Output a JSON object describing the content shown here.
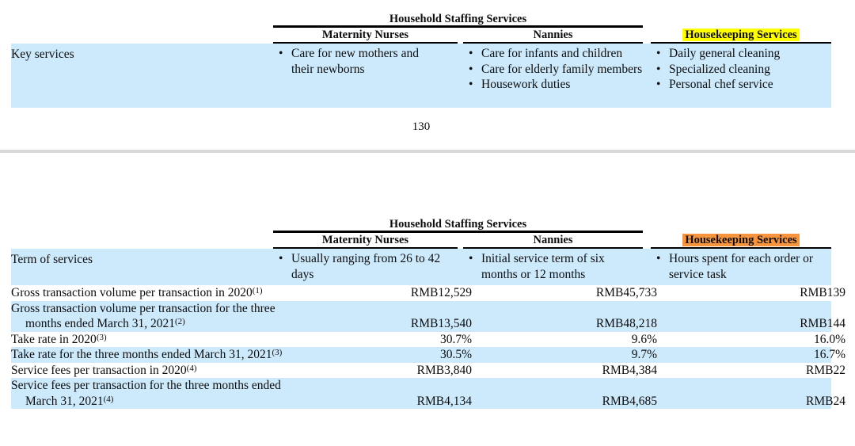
{
  "page": {
    "page_number": "130"
  },
  "colors": {
    "row_blue": "#cdeafc",
    "highlight_yellow": "#ffff00",
    "highlight_orange": "#f7943e",
    "divider_gray": "#d9d9d9"
  },
  "table_top": {
    "group_header": "Household Staffing Services",
    "columns": [
      "Maternity Nurses",
      "Nannies",
      "Housekeeping Services"
    ],
    "key_services": {
      "label": "Key services",
      "maternity": [
        "Care for new mothers and their newborns"
      ],
      "nannies": [
        "Care for infants and children",
        "Care for elderly family members",
        "Housework duties"
      ],
      "housekeeping": [
        "Daily general cleaning",
        "Specialized cleaning",
        "Personal chef service"
      ]
    }
  },
  "table_bottom": {
    "group_header": "Household Staffing Services",
    "columns": [
      "Maternity Nurses",
      "Nannies",
      "Housekeeping Services"
    ],
    "term_of_services": {
      "label": "Term of services",
      "maternity": [
        "Usually ranging from 26 to 42 days"
      ],
      "nannies": [
        "Initial service term of six months or 12 months"
      ],
      "housekeeping": [
        "Hours spent for each order or service task"
      ]
    },
    "rows": [
      {
        "label": "Gross transaction volume per transaction in 2020",
        "footnote": "(1)",
        "values": [
          "RMB12,529",
          "RMB45,733",
          "RMB139"
        ]
      },
      {
        "label": "Gross transaction volume per transaction for the three months ended March 31, 2021",
        "footnote": "(2)",
        "values": [
          "RMB13,540",
          "RMB48,218",
          "RMB144"
        ]
      },
      {
        "label": "Take rate in 2020",
        "footnote": "(3)",
        "values": [
          "30.7%",
          "9.6%",
          "16.0%"
        ]
      },
      {
        "label": "Take rate for the three months ended March 31, 2021",
        "footnote": "(3)",
        "values": [
          "30.5%",
          "9.7%",
          "16.7%"
        ]
      },
      {
        "label": "Service fees per transaction in 2020",
        "footnote": "(4)",
        "values": [
          "RMB3,840",
          "RMB4,384",
          "RMB22"
        ]
      },
      {
        "label": "Service fees per transaction for the three months ended March 31, 2021",
        "footnote": "(4)",
        "values": [
          "RMB4,134",
          "RMB4,685",
          "RMB24"
        ]
      }
    ]
  }
}
